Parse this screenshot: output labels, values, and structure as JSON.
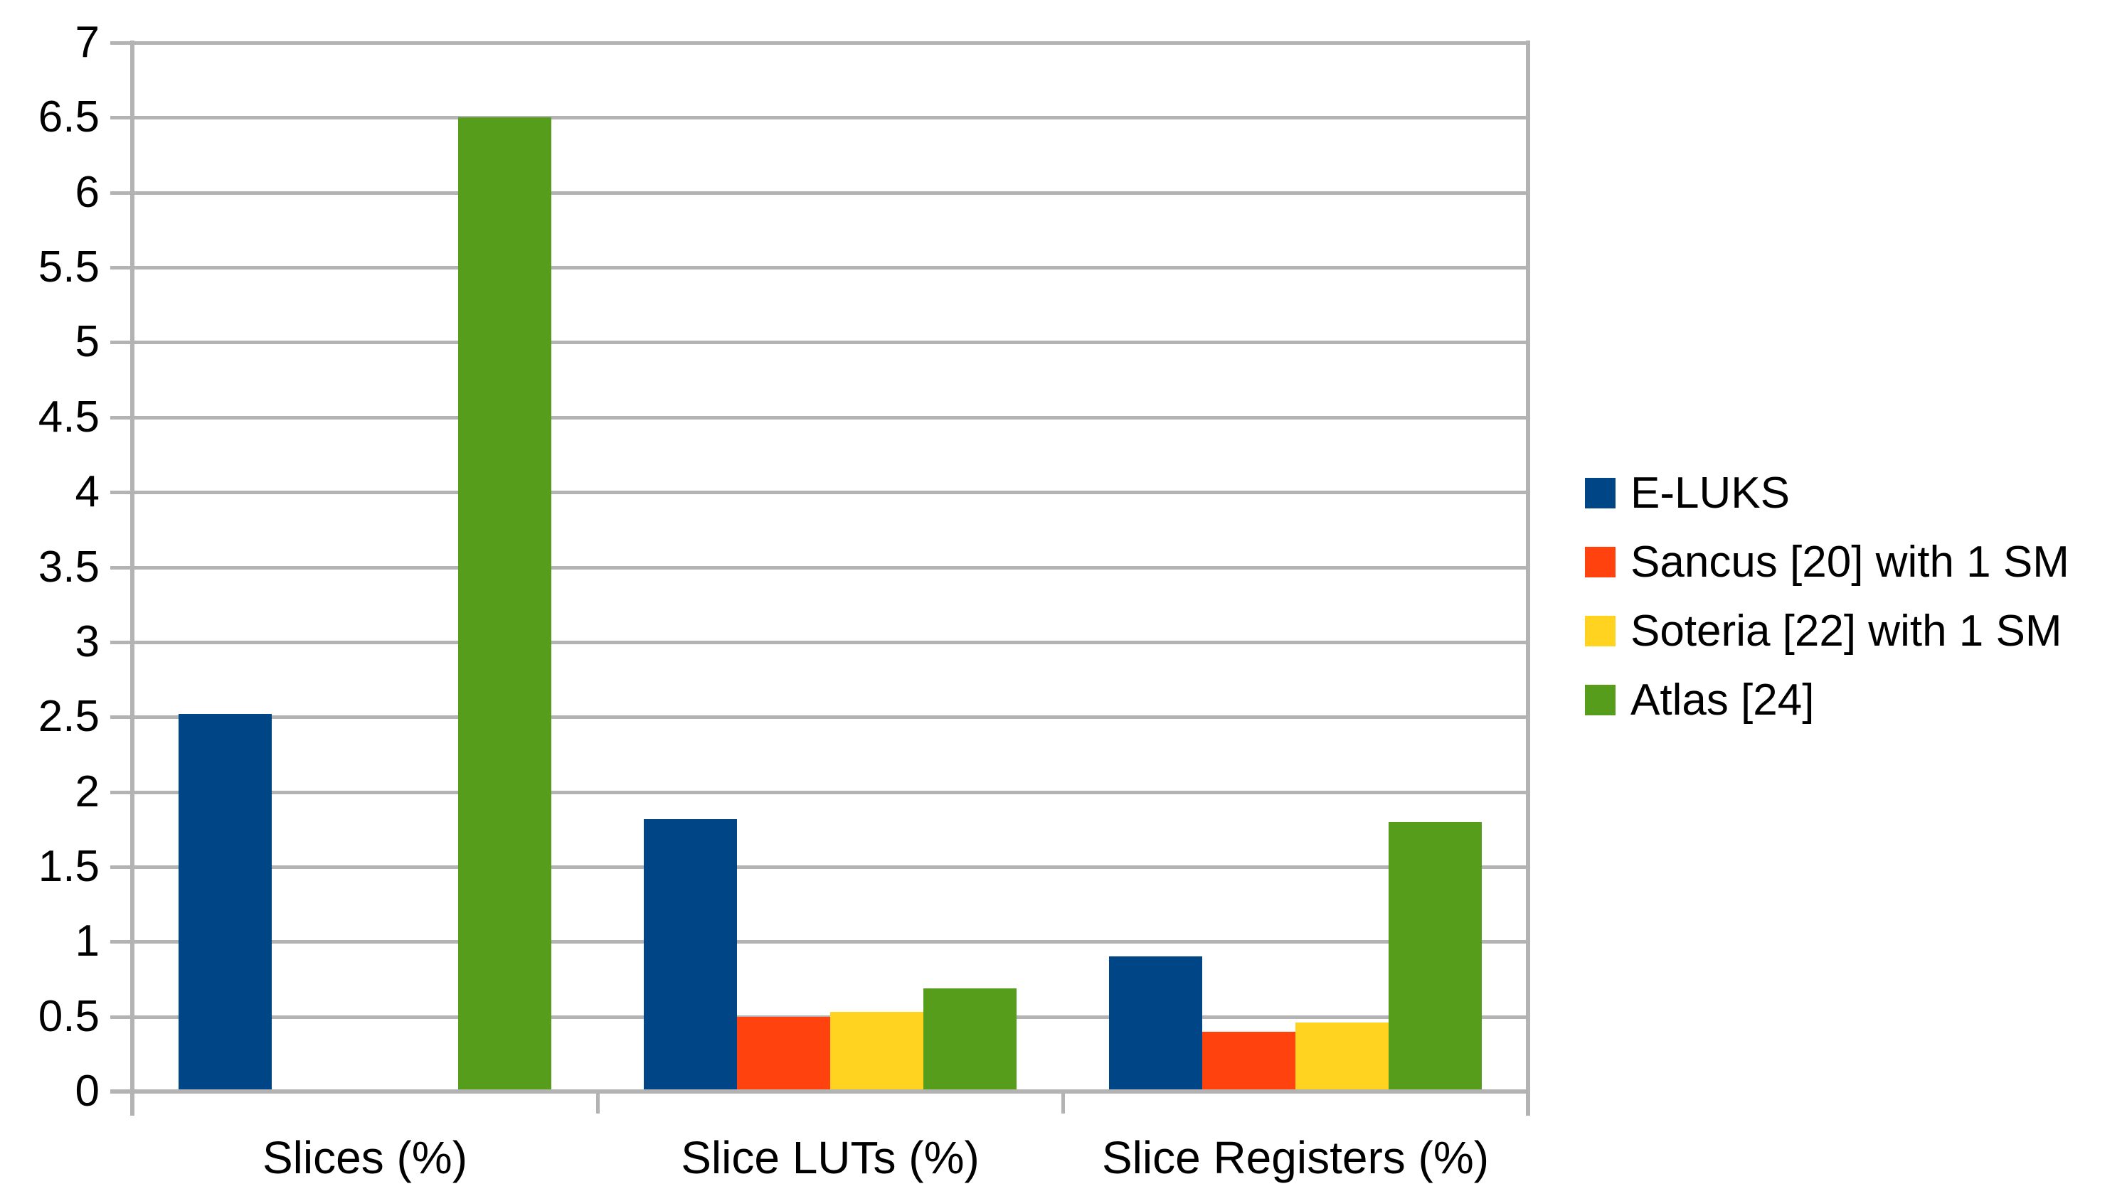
{
  "chart_data": {
    "type": "bar",
    "title": "",
    "xlabel": "",
    "ylabel": "",
    "categories": [
      "Slices (%)",
      "Slice LUTs (%)",
      "Slice Registers (%)"
    ],
    "series": [
      {
        "name": "E-LUKS",
        "color": "#004586",
        "values": [
          2.52,
          1.82,
          0.9
        ]
      },
      {
        "name": "Sancus [20] with 1 SM",
        "color": "#ff420e",
        "values": [
          0,
          0.5,
          0.4
        ]
      },
      {
        "name": "Soteria [22] with 1 SM",
        "color": "#ffd320",
        "values": [
          0,
          0.53,
          0.46
        ]
      },
      {
        "name": "Atlas [24]",
        "color": "#579d1c",
        "values": [
          6.5,
          0.69,
          1.8
        ]
      }
    ],
    "ylim": [
      0,
      7
    ],
    "ytick_step": 0.5,
    "ytick_labels": [
      "0",
      "0.5",
      "1",
      "1.5",
      "2",
      "2.5",
      "3",
      "3.5",
      "4",
      "4.5",
      "5",
      "5.5",
      "6",
      "6.5",
      "7"
    ],
    "grid": true,
    "legend_position": "right",
    "axis_color": "#b3b3b3",
    "text_color": "#000000",
    "background_color": "#ffffff"
  }
}
